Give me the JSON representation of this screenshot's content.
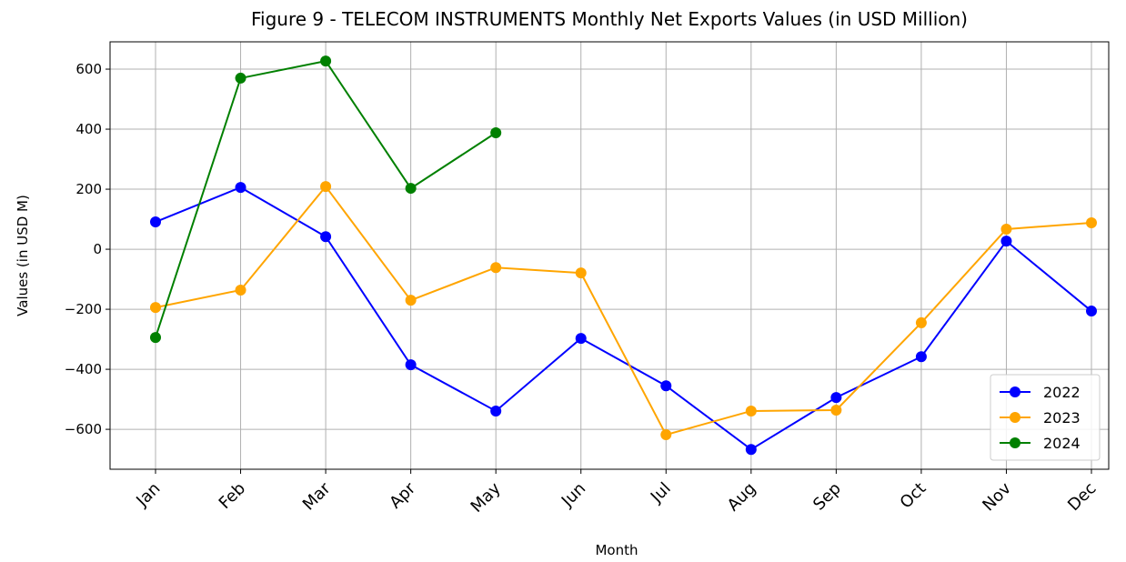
{
  "chart_data": {
    "type": "line",
    "title": "Figure 9 - TELECOM INSTRUMENTS Monthly Net Exports Values (in USD Million)",
    "xlabel": "Month",
    "ylabel": "Values (in USD M)",
    "categories": [
      "Jan",
      "Feb",
      "Mar",
      "Apr",
      "May",
      "Jun",
      "Jul",
      "Aug",
      "Sep",
      "Oct",
      "Nov",
      "Dec"
    ],
    "series": [
      {
        "name": "2022",
        "color": "#0000ff",
        "values": [
          91,
          206,
          42,
          -385,
          -539,
          -297,
          -455,
          -667,
          -494,
          -358,
          27,
          -206
        ]
      },
      {
        "name": "2023",
        "color": "#ffa500",
        "values": [
          -194,
          -136,
          209,
          -170,
          -61,
          -79,
          -618,
          -539,
          -536,
          -245,
          67,
          88
        ]
      },
      {
        "name": "2024",
        "color": "#008000",
        "values": [
          -294,
          570,
          627,
          203,
          388,
          null,
          null,
          null,
          null,
          null,
          null,
          null
        ]
      }
    ],
    "ylim": [
      -733,
      691
    ],
    "yticks": [
      {
        "value": -600,
        "label": "−600"
      },
      {
        "value": -400,
        "label": "−400"
      },
      {
        "value": -200,
        "label": "−200"
      },
      0,
      200,
      400,
      600
    ],
    "grid": true,
    "legend": "lower right"
  }
}
